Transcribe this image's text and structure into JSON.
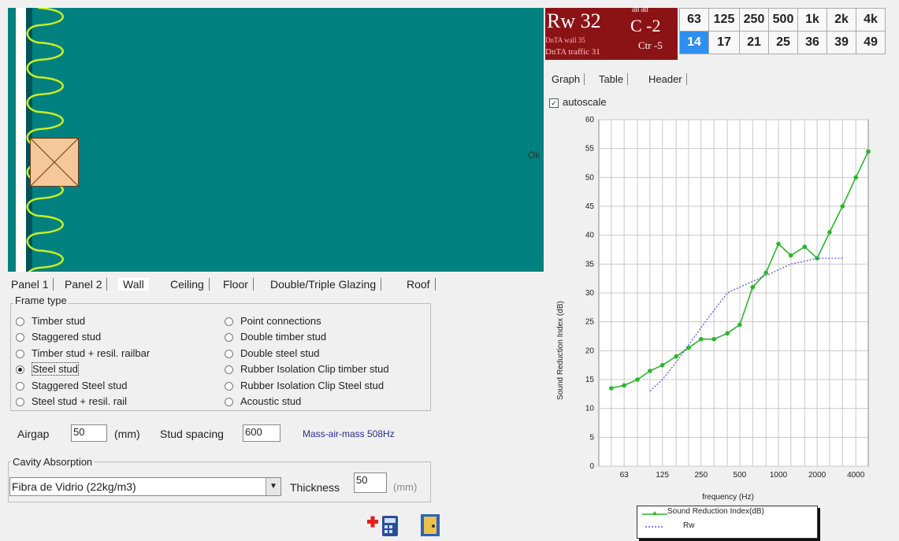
{
  "header": {
    "rw": "Rw 32",
    "c_sup": "dB dB",
    "c": "C -2",
    "data_wall": "DnTA wall  35",
    "ctr": "Ctr -5",
    "data_traffic": "DnTA traffic 31",
    "bands": [
      "63",
      "125",
      "250",
      "500",
      "1k",
      "2k",
      "4k"
    ],
    "band_values": [
      "14",
      "17",
      "21",
      "25",
      "36",
      "39",
      "49"
    ],
    "accent": "#8b1316",
    "highlight": "#2d8ff0"
  },
  "right_tabs": [
    "Graph",
    "Table",
    "Header"
  ],
  "autoscale": {
    "label": "autoscale",
    "checked": "✓"
  },
  "gap_mark": "Ok",
  "chart_data": {
    "type": "line",
    "xlabel": "frequency (Hz)",
    "ylabel": "Sound Reduction Index (dB)",
    "ylim": [
      0,
      60
    ],
    "y_ticks": [
      "0",
      "5",
      "10",
      "15",
      "20",
      "25",
      "30",
      "35",
      "40",
      "45",
      "50",
      "55",
      "60"
    ],
    "x_tick_labels": [
      "63",
      "125",
      "250",
      "500",
      "1000",
      "2000",
      "4000"
    ],
    "x_tick_values": [
      63,
      125,
      250,
      500,
      1000,
      2000,
      4000
    ],
    "xlim": [
      40,
      5000
    ],
    "x_scale": "log",
    "grid": true,
    "series": [
      {
        "name": "Sound Reduction Index(dB)",
        "color": "#2cb52c",
        "x": [
          50,
          63,
          80,
          100,
          125,
          160,
          200,
          250,
          315,
          400,
          500,
          630,
          800,
          1000,
          1250,
          1600,
          2000,
          2500,
          3150,
          4000,
          5000
        ],
        "y": [
          13.5,
          14,
          15,
          16.5,
          17.5,
          19,
          20.5,
          22,
          22,
          23,
          24.5,
          31,
          33.5,
          38.5,
          36.5,
          38,
          36,
          40.5,
          45,
          50,
          54.5
        ]
      },
      {
        "name": "Rw",
        "color": "#5a5ad6",
        "x": [
          100,
          125,
          160,
          200,
          250,
          315,
          400,
          500,
          630,
          800,
          1000,
          1250,
          1600,
          2000,
          2500,
          3150
        ],
        "y": [
          13,
          15,
          18,
          21,
          24,
          27,
          30,
          31,
          32,
          33,
          34,
          35,
          35.5,
          36,
          36,
          36
        ]
      }
    ],
    "legend_position": "bottom"
  },
  "bottom_tabs": [
    "Panel 1",
    "Panel 2",
    "Wall",
    "Ceiling",
    "Floor",
    "Double/Triple Glazing",
    "Roof"
  ],
  "frame": {
    "title": "Frame type",
    "left": [
      {
        "label": "Timber stud",
        "on": false
      },
      {
        "label": "Staggered stud",
        "on": false
      },
      {
        "label": "Timber stud + resil. railbar",
        "on": false
      },
      {
        "label": "Steel stud",
        "on": true
      },
      {
        "label": "Staggered Steel stud",
        "on": false
      },
      {
        "label": "Steel stud + resil. rail",
        "on": false
      }
    ],
    "right": [
      {
        "label": "Point connections",
        "on": false
      },
      {
        "label": "Double timber stud",
        "on": false
      },
      {
        "label": "Double steel stud",
        "on": false
      },
      {
        "label": "Rubber Isolation Clip timber stud",
        "on": false
      },
      {
        "label": "Rubber Isolation Clip Steel stud",
        "on": false
      },
      {
        "label": "Acoustic stud",
        "on": false
      }
    ]
  },
  "airgap": {
    "label": "Airgap",
    "value": "50",
    "unit": "(mm)"
  },
  "stud_spacing": {
    "label": "Stud spacing",
    "value": "600"
  },
  "mass_air_mass": "Mass-air-mass 508Hz",
  "cavity": {
    "title": "Cavity Absorption",
    "selected": "Fibra de Vidrio (22kg/m3)",
    "thickness_label": "Thickness",
    "thickness_value": "50",
    "unit": "(mm)"
  }
}
